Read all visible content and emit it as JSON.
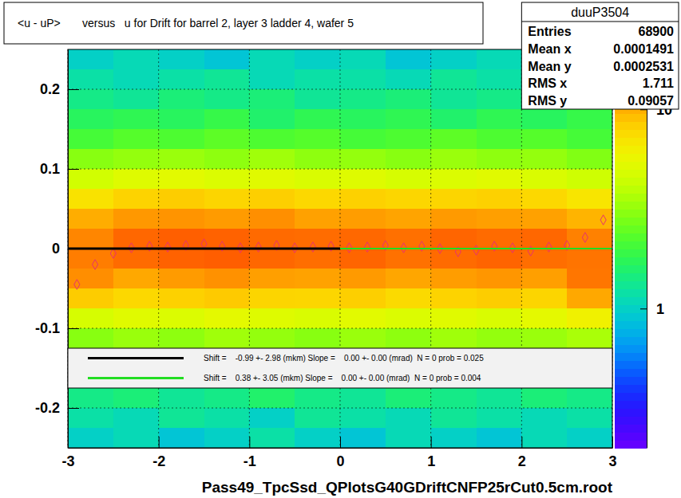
{
  "chart_data": {
    "type": "heatmap",
    "title": "<u - uP>       versus   u for Drift for barrel 2, layer 3 ladder 4, wafer 5",
    "x_label": "Pass49_TpcSsd_QPlotsG40GDriftCNFP25rCut0.5cm.root",
    "xlim": [
      -3,
      3
    ],
    "ylim": [
      -0.25,
      0.25
    ],
    "xticks": [
      -3,
      -2,
      -1,
      0,
      1,
      2,
      3
    ],
    "yticks": [
      -0.2,
      -0.1,
      0,
      0.1,
      0.2
    ],
    "grid": true,
    "cell_x_edges": [
      -3,
      -2.5,
      -2,
      -1.5,
      -1,
      -0.5,
      0,
      0.5,
      1,
      1.5,
      2,
      2.5,
      3
    ],
    "cell_y_edges": [
      -0.25,
      -0.225,
      -0.2,
      -0.175,
      -0.15,
      -0.125,
      -0.1,
      -0.075,
      -0.05,
      -0.025,
      0,
      0.025,
      0.05,
      0.075,
      0.1,
      0.125,
      0.15,
      0.175,
      0.2,
      0.225,
      0.25
    ],
    "cells": [
      [
        1.0,
        1.1,
        0.9,
        1.0,
        1.2,
        1.0,
        0.9,
        1.1,
        1.0,
        0.9,
        1.1,
        1.0
      ],
      [
        1.2,
        1.1,
        1.3,
        1.2,
        1.0,
        1.3,
        1.2,
        1.1,
        1.3,
        1.2,
        1.1,
        1.2
      ],
      [
        1.4,
        1.5,
        1.3,
        1.4,
        1.6,
        1.4,
        1.3,
        1.5,
        1.4,
        1.3,
        1.5,
        1.4
      ],
      [
        null,
        null,
        null,
        null,
        null,
        null,
        null,
        null,
        null,
        null,
        null,
        null
      ],
      [
        null,
        null,
        null,
        null,
        null,
        null,
        null,
        null,
        null,
        null,
        null,
        null
      ],
      [
        3.0,
        3.3,
        3.1,
        3.4,
        3.2,
        3.0,
        3.3,
        3.1,
        3.4,
        3.2,
        3.3,
        3.6
      ],
      [
        4.8,
        5.2,
        5.0,
        5.4,
        5.1,
        4.9,
        5.3,
        5.0,
        5.2,
        4.9,
        5.4,
        6.2
      ],
      [
        8.5,
        7.8,
        8.2,
        8.6,
        8.0,
        7.9,
        8.3,
        7.7,
        8.1,
        8.4,
        8.0,
        10.5
      ],
      [
        12,
        10.5,
        11.2,
        11.8,
        11,
        10.8,
        11.3,
        10.6,
        11.1,
        11.5,
        11,
        13.5
      ],
      [
        13,
        14.2,
        14.8,
        15.1,
        14.5,
        14,
        14.6,
        13.8,
        14.2,
        14.7,
        14,
        13.6
      ],
      [
        12.5,
        14.5,
        15,
        14.8,
        14.3,
        14.1,
        14.4,
        13.9,
        14.6,
        14.2,
        14.5,
        12.8
      ],
      [
        10.2,
        11.4,
        11.6,
        11.2,
        11.9,
        10.9,
        11.1,
        10.7,
        11.3,
        11,
        10.9,
        9.8
      ],
      [
        7.2,
        8.1,
        8.4,
        8,
        8.3,
        7.8,
        8.2,
        7.9,
        8,
        8.2,
        7.8,
        7
      ],
      [
        4.6,
        5.1,
        5.3,
        5,
        5.2,
        4.9,
        5.1,
        4.8,
        5,
        5.2,
        4.9,
        4.5
      ],
      [
        3,
        3.2,
        3.3,
        3.1,
        3.4,
        3.1,
        3.2,
        3,
        3.3,
        3.1,
        3.2,
        2.9
      ],
      [
        2.1,
        2.3,
        2.2,
        2.4,
        2.2,
        2.3,
        2.1,
        2.2,
        2.4,
        2.2,
        2.3,
        2.1
      ],
      [
        1.7,
        1.8,
        1.7,
        1.9,
        1.6,
        1.8,
        1.7,
        1.8,
        1.6,
        1.8,
        1.7,
        1.9
      ],
      [
        1.4,
        1.3,
        1.5,
        1.4,
        1.5,
        1.3,
        1.4,
        1.5,
        1.3,
        1.4,
        null,
        null
      ],
      [
        1.2,
        1.1,
        1.2,
        1.3,
        1.1,
        1.2,
        1.2,
        1.1,
        1.3,
        1.2,
        null,
        null
      ],
      [
        1.0,
        1.1,
        1.0,
        0.9,
        1.1,
        1.0,
        1.1,
        0.9,
        1.0,
        1.1,
        null,
        null
      ]
    ],
    "zlim": [
      0.2,
      20
    ],
    "zticks": [
      1,
      10
    ],
    "stats": {
      "name": "duuP3504",
      "rows": [
        [
          "Entries",
          "68900"
        ],
        [
          "Mean x",
          "0.0001491"
        ],
        [
          "Mean y",
          "0.0002531"
        ],
        [
          "RMS x",
          "1.711"
        ],
        [
          "RMS y",
          "0.09057"
        ]
      ]
    },
    "series": [
      {
        "type": "scatter",
        "marker": "diamond",
        "color": "#e8336d",
        "x": [
          -2.9,
          -2.7,
          -2.5,
          -2.3,
          -2.1,
          -1.9,
          -1.7,
          -1.5,
          -1.3,
          -1.1,
          -0.9,
          -0.7,
          -0.5,
          -0.3,
          -0.1,
          0.1,
          0.3,
          0.5,
          0.7,
          0.9,
          1.1,
          1.3,
          1.5,
          1.7,
          1.9,
          2.1,
          2.3,
          2.5,
          2.7,
          2.9
        ],
        "values": [
          -0.045,
          -0.02,
          -0.006,
          0.001,
          0.003,
          0.002,
          0.004,
          0.006,
          0.003,
          0.001,
          0.002,
          0.004,
          0.001,
          0.002,
          0.003,
          0.001,
          0.002,
          0.004,
          0.001,
          0.003,
          0.0,
          -0.004,
          -0.002,
          0.003,
          0.001,
          -0.003,
          0.002,
          0.004,
          0.014,
          0.036
        ]
      },
      {
        "type": "line",
        "name": "Shift =    -0.99 +- 2.98 (mkm) Slope =    0.00 +- 0.00 (mrad)  N = 0 prob = 0.025",
        "color": "#000000",
        "x": [
          -3,
          0
        ],
        "values": [
          -0.0001,
          -0.0001
        ]
      },
      {
        "type": "line",
        "name": "Shift =    0.38 +- 3.05 (mkm) Slope =    0.00 +- 0.00 (mrad)  N = 0 prob = 0.004",
        "color": "#22dd22",
        "x": [
          0,
          3
        ],
        "values": [
          4e-05,
          4e-05
        ]
      }
    ]
  }
}
